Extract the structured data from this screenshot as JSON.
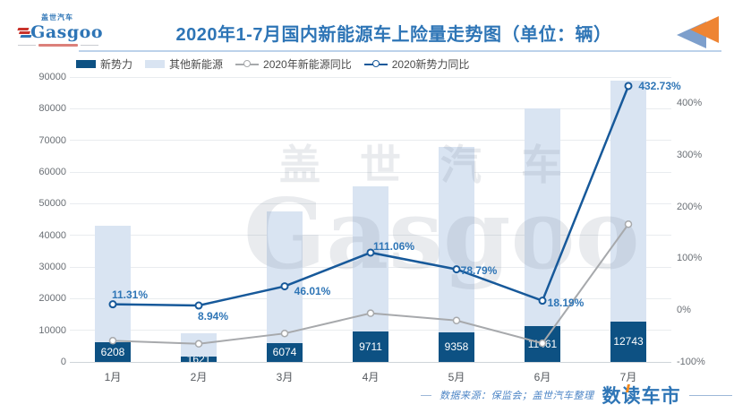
{
  "header": {
    "logo": {
      "brand_cn": "盖世汽车",
      "brand_en": "Gasgoo"
    },
    "title": "2020年1-7月国内新能源车上险量走势图（单位：辆）"
  },
  "legend": [
    {
      "label": "新势力",
      "swatch": "bar",
      "color": "#0d5183"
    },
    {
      "label": "其他新能源",
      "swatch": "bar",
      "color": "#d9e4f2"
    },
    {
      "label": "2020年新能源同比",
      "swatch": "line",
      "color": "#a7a9ac"
    },
    {
      "label": "2020新势力同比",
      "swatch": "line",
      "color": "#17599a"
    }
  ],
  "chart_data": {
    "type": "bar+line",
    "title": "2020年1-7月国内新能源车上险量走势图（单位：辆）",
    "categories": [
      "1月",
      "2月",
      "3月",
      "4月",
      "5月",
      "6月",
      "7月"
    ],
    "stacked": true,
    "bar_series": [
      {
        "name": "新势力",
        "color": "#0d5183",
        "values": [
          6208,
          1621,
          6074,
          9711,
          9358,
          11461,
          12743
        ],
        "labels": [
          "6208",
          "1621",
          "6074",
          "9711",
          "9358",
          "11461",
          "12743"
        ]
      },
      {
        "name": "其他新能源",
        "color": "#d9e4f2",
        "values_estimated": [
          36800,
          7400,
          41400,
          45700,
          58600,
          68500,
          76200
        ]
      }
    ],
    "line_series": [
      {
        "name": "2020年新能源同比",
        "color": "#a7a9ac",
        "axis": "right",
        "values_pct_estimated": [
          -59,
          -65,
          -45,
          -6,
          -20,
          -64,
          166
        ],
        "labels": [
          "",
          "",
          "",
          "",
          "",
          "",
          ""
        ]
      },
      {
        "name": "2020新势力同比",
        "color": "#17599a",
        "axis": "right",
        "values_pct": [
          11.31,
          8.94,
          46.01,
          111.06,
          78.79,
          18.19,
          432.73
        ],
        "labels": [
          "11.31%",
          "8.94%",
          "46.01%",
          "111.06%",
          "78.79%",
          "18.19%",
          "432.73%"
        ]
      }
    ],
    "left_axis": {
      "min": 0,
      "max": 90000,
      "step": 10000,
      "tick_labels": [
        "0",
        "10000",
        "20000",
        "30000",
        "40000",
        "50000",
        "60000",
        "70000",
        "80000",
        "90000"
      ]
    },
    "right_axis": {
      "min": -100,
      "max": 450,
      "tick_values": [
        -100,
        0,
        100,
        200,
        300,
        400
      ],
      "tick_labels": [
        "-100%",
        "0%",
        "100%",
        "200%",
        "300%",
        "400%"
      ]
    },
    "grid": true,
    "legend_position": "top-left"
  },
  "watermark": {
    "line1": "盖世汽车",
    "line2": "Gasgoo"
  },
  "footer": {
    "source": "数据来源：保监会；盖世汽车整理",
    "brand": "数读车市"
  }
}
